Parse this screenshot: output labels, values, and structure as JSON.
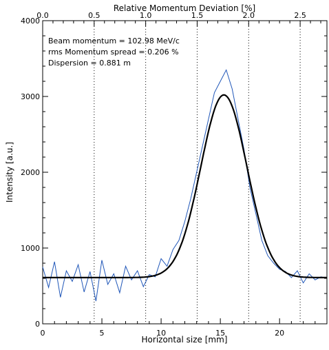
{
  "chart_data": {
    "type": "line",
    "xlabel": "Horizontal size [mm]",
    "ylabel": "Intensity [a.u.]",
    "x2label": "Relative Momentum Deviation [%]",
    "xlim": [
      0,
      24
    ],
    "ylim": [
      0,
      4000
    ],
    "x2lim": [
      0,
      2.76
    ],
    "x_ticks": [
      0,
      5,
      10,
      15,
      20
    ],
    "y_ticks": [
      0,
      1000,
      2000,
      3000,
      4000
    ],
    "x2_ticks": [
      0.0,
      0.5,
      1.0,
      1.5,
      2.0,
      2.5
    ],
    "x2_tick_labels": [
      "0.0",
      "0.5",
      "1.0",
      "1.5",
      "2.0",
      "2.5"
    ],
    "annotations": [
      "Beam momentum = 102.98 MeV/c",
      "rms Momentum spread =  0.206 %",
      "Dispersion =  0.881 m"
    ],
    "dotted_lines_x2": [
      0.5,
      1.0,
      1.5,
      2.0,
      2.5
    ],
    "grid": false,
    "legend": "none",
    "series": [
      {
        "kind": "measured profile (noisy)",
        "color": "#1f56b8",
        "x": [
          0.0,
          0.5,
          1.0,
          1.5,
          2.0,
          2.5,
          3.0,
          3.5,
          4.0,
          4.5,
          5.0,
          5.5,
          6.0,
          6.5,
          7.0,
          7.5,
          8.0,
          8.5,
          9.0,
          9.5,
          10.0,
          10.5,
          11.0,
          11.5,
          12.0,
          12.5,
          13.0,
          13.5,
          14.0,
          14.5,
          15.0,
          15.5,
          16.0,
          16.5,
          17.0,
          17.5,
          18.0,
          18.5,
          19.0,
          19.5,
          20.0,
          20.5,
          21.0,
          21.5,
          22.0,
          22.5,
          23.0,
          23.5,
          24.0
        ],
        "values": [
          750,
          480,
          820,
          350,
          700,
          560,
          780,
          420,
          690,
          300,
          840,
          520,
          660,
          410,
          760,
          580,
          700,
          490,
          650,
          620,
          860,
          760,
          980,
          1100,
          1350,
          1650,
          2000,
          2350,
          2700,
          3050,
          3200,
          3350,
          3100,
          2700,
          2300,
          1800,
          1450,
          1100,
          900,
          800,
          720,
          690,
          610,
          700,
          540,
          660,
          580,
          620,
          600
        ]
      },
      {
        "kind": "gaussian fit",
        "color": "#000000",
        "baseline": 610,
        "amplitude": 2410,
        "center": 15.3,
        "sigma": 1.95
      }
    ]
  }
}
